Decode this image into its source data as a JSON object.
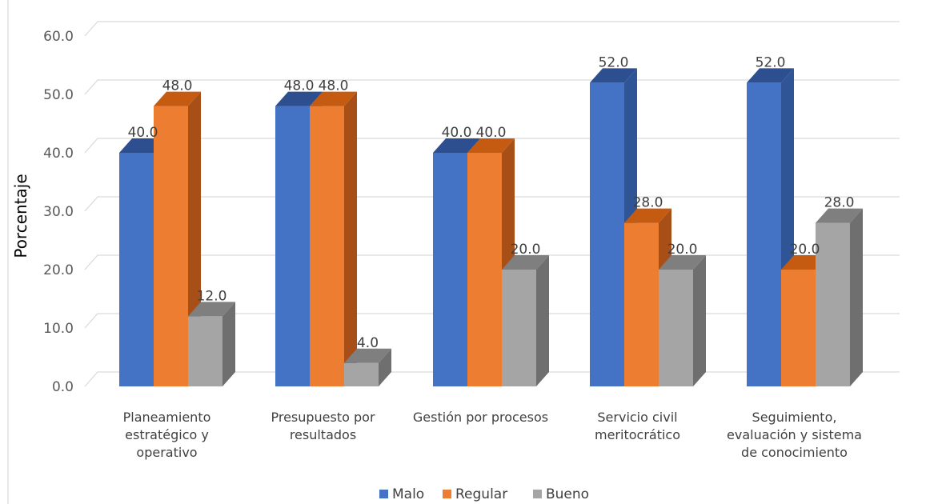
{
  "chart_data": {
    "type": "bar",
    "ylabel": "Porcentaje",
    "ylim": [
      0,
      60
    ],
    "yticks": [
      "0.0",
      "10.0",
      "20.0",
      "30.0",
      "40.0",
      "50.0",
      "60.0"
    ],
    "categories": [
      [
        "Planeamiento",
        "estratégico y",
        "operativo"
      ],
      [
        "Presupuesto por",
        "resultados"
      ],
      [
        "Gestión por procesos"
      ],
      [
        "Servicio civil",
        "meritocrático"
      ],
      [
        "Seguimiento,",
        "evaluación y sistema",
        "de conocimiento"
      ]
    ],
    "series": [
      {
        "name": "Malo",
        "values": [
          40.0,
          48.0,
          40.0,
          52.0,
          52.0
        ],
        "labels": [
          "40.0",
          "48.0",
          "40.0",
          "52.0",
          "52.0"
        ],
        "color": "#4472c4",
        "side": "#2f5597",
        "top": "#2e4f8f"
      },
      {
        "name": "Regular",
        "values": [
          48.0,
          48.0,
          40.0,
          28.0,
          20.0
        ],
        "labels": [
          "48.0",
          "48.0",
          "40.0",
          "28.0",
          "20.0"
        ],
        "color": "#ed7d31",
        "side": "#a84f18",
        "top": "#c55a11"
      },
      {
        "name": "Bueno",
        "values": [
          12.0,
          4.0,
          20.0,
          20.0,
          28.0
        ],
        "labels": [
          "12.0",
          "4.0",
          "20.0",
          "20.0",
          "28.0"
        ],
        "color": "#a5a5a5",
        "side": "#6f6f6f",
        "top": "#7f7f7f"
      }
    ],
    "grid": true,
    "legend": "bottom"
  }
}
